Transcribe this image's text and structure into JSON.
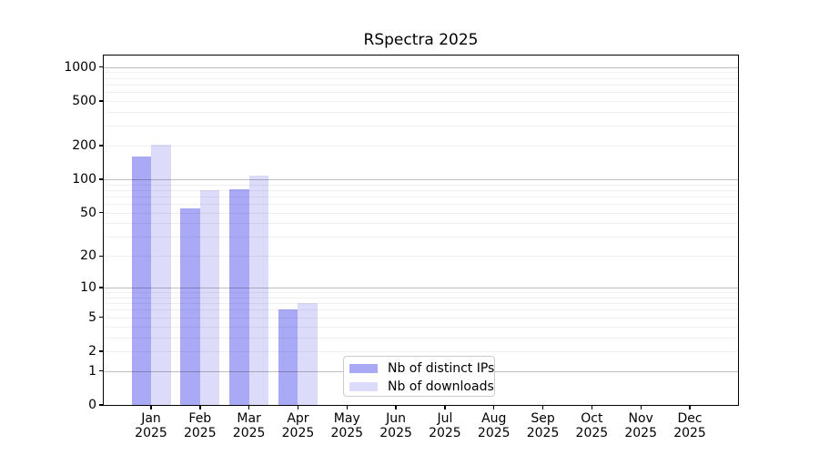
{
  "chart_data": {
    "type": "bar",
    "title": "RSpectra 2025",
    "y_scale": "log10(1+x)",
    "categories": [
      "Jan",
      "Feb",
      "Mar",
      "Apr",
      "May",
      "Jun",
      "Jul",
      "Aug",
      "Sep",
      "Oct",
      "Nov",
      "Dec"
    ],
    "category_year_line": "2025",
    "series": [
      {
        "name": "Nb of distinct IPs",
        "color": "#a9a9f6",
        "values": [
          160,
          55,
          82,
          6,
          null,
          null,
          null,
          null,
          null,
          null,
          null,
          null
        ]
      },
      {
        "name": "Nb of downloads",
        "color": "#dcdcfa",
        "values": [
          203,
          80,
          107,
          7,
          null,
          null,
          null,
          null,
          null,
          null,
          null,
          null
        ]
      }
    ],
    "y_ticks": [
      0,
      1,
      2,
      5,
      10,
      20,
      50,
      100,
      200,
      500,
      1000
    ],
    "y_grid_major": [
      1,
      10,
      100,
      1000
    ],
    "y_grid_minor_decades": [
      1,
      10,
      100
    ],
    "ylim": [
      0,
      1280
    ],
    "xlabel": "",
    "ylabel": "",
    "grid": "horizontal major+minor, drawn over bars",
    "legend_position": "inside-bottom-center"
  },
  "colors": {
    "axis": "#000000",
    "grid_major": "rgba(0,0,0,0.25)",
    "grid_minor": "rgba(0,0,0,0.06)",
    "background": "#ffffff"
  }
}
